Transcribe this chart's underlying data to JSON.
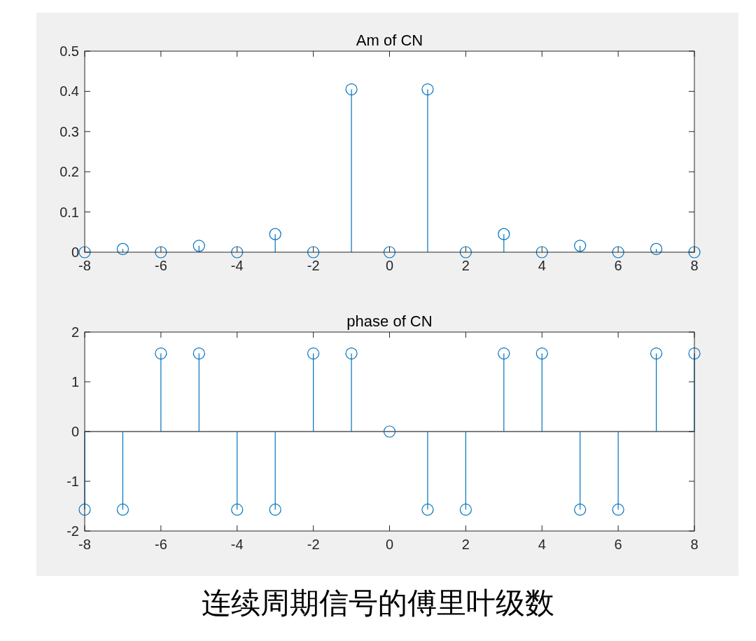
{
  "chart_data": [
    {
      "type": "lollipop",
      "title": "Am of CN",
      "x": [
        -8,
        -7,
        -6,
        -5,
        -4,
        -3,
        -2,
        -1,
        0,
        1,
        2,
        3,
        4,
        5,
        6,
        7,
        8
      ],
      "series": [
        {
          "color": "#0072bd",
          "values": [
            0,
            0.008,
            0,
            0.016,
            0,
            0.045,
            0,
            0.405,
            0,
            0.405,
            0,
            0.045,
            0,
            0.016,
            0,
            0.008,
            0
          ]
        }
      ],
      "xlim": [
        -8,
        8
      ],
      "xticks": [
        -8,
        -6,
        -4,
        -2,
        0,
        2,
        4,
        6,
        8
      ],
      "ylim": [
        0,
        0.5
      ],
      "yticks": [
        0,
        0.1,
        0.2,
        0.3,
        0.4,
        0.5
      ],
      "marker": "circle",
      "grid": false
    },
    {
      "type": "lollipop",
      "title": "phase of CN",
      "x": [
        -8,
        -7,
        -6,
        -5,
        -4,
        -3,
        -2,
        -1,
        0,
        1,
        2,
        3,
        4,
        5,
        6,
        7,
        8
      ],
      "series": [
        {
          "color": "#0072bd",
          "values": [
            -1.57,
            -1.57,
            1.57,
            1.57,
            -1.57,
            -1.57,
            1.57,
            1.57,
            0,
            -1.57,
            -1.57,
            1.57,
            1.57,
            -1.57,
            -1.57,
            1.57,
            1.57
          ]
        }
      ],
      "xlim": [
        -8,
        8
      ],
      "xticks": [
        -8,
        -6,
        -4,
        -2,
        0,
        2,
        4,
        6,
        8
      ],
      "ylim": [
        -2,
        2
      ],
      "yticks": [
        -2,
        -1,
        0,
        1,
        2
      ],
      "marker": "circle",
      "grid": false,
      "ref_lines": [
        {
          "axis": "y",
          "value": 0,
          "color": "#000000"
        }
      ],
      "annotations": [
        "连续周期信号的傅里叶级数"
      ]
    }
  ]
}
